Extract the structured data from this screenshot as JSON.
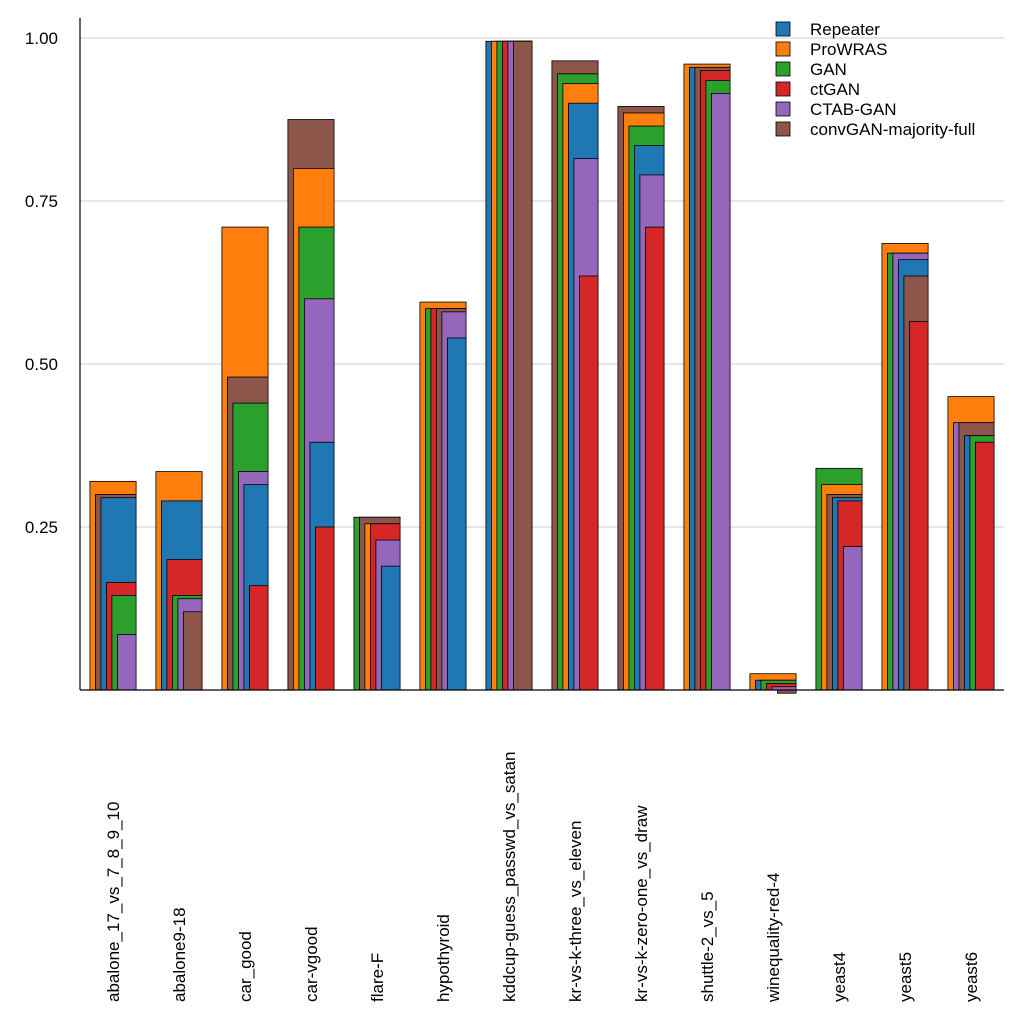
{
  "chart_data": {
    "type": "bar",
    "title": "",
    "xlabel": "",
    "ylabel": "",
    "ylim": [
      0,
      1.07
    ],
    "yticks": [
      "0.25",
      "0.50",
      "0.75",
      "1.00"
    ],
    "ytick_values": [
      0.25,
      0.5,
      0.75,
      1.0
    ],
    "grid": true,
    "legend_position": "top-right",
    "categories": [
      "abalone_17_vs_7_8_9_10",
      "abalone9-18",
      "car_good",
      "car-vgood",
      "flare-F",
      "hypothyroid",
      "kddcup-guess_passwd_vs_satan",
      "kr-vs-k-three_vs_eleven",
      "kr-vs-k-zero-one_vs_draw",
      "shuttle-2_vs_5",
      "winequality-red-4",
      "yeast4",
      "yeast5",
      "yeast6"
    ],
    "series": [
      {
        "name": "Repeater",
        "color": "#1f77b4",
        "values": [
          0.295,
          0.29,
          0.315,
          0.38,
          0.19,
          0.54,
          0.995,
          0.9,
          0.835,
          0.955,
          0.015,
          0.295,
          0.66,
          0.39
        ]
      },
      {
        "name": "ProWRAS",
        "color": "#ff7f0e",
        "values": [
          0.32,
          0.335,
          0.71,
          0.8,
          0.255,
          0.595,
          0.995,
          0.93,
          0.885,
          0.96,
          0.025,
          0.315,
          0.685,
          0.45
        ]
      },
      {
        "name": "GAN",
        "color": "#2ca02c",
        "values": [
          0.145,
          0.145,
          0.44,
          0.71,
          0.265,
          0.585,
          0.995,
          0.945,
          0.865,
          0.935,
          0.015,
          0.34,
          0.67,
          0.39
        ]
      },
      {
        "name": "ctGAN",
        "color": "#d62728",
        "values": [
          0.165,
          0.2,
          0.16,
          0.25,
          0.255,
          0.585,
          0.995,
          0.635,
          0.71,
          0.95,
          0.01,
          0.29,
          0.565,
          0.38
        ]
      },
      {
        "name": "CTAB-GAN",
        "color": "#9467bd",
        "values": [
          0.085,
          0.14,
          0.335,
          0.6,
          0.23,
          0.58,
          0.995,
          0.815,
          0.79,
          0.915,
          0.005,
          0.22,
          0.67,
          0.41
        ]
      },
      {
        "name": "convGAN-majority-full",
        "color": "#8c564b",
        "values": [
          0.3,
          0.12,
          0.48,
          0.875,
          0.265,
          0.585,
          0.995,
          0.965,
          0.895,
          0.955,
          -0.005,
          0.3,
          0.635,
          0.41
        ]
      }
    ]
  }
}
